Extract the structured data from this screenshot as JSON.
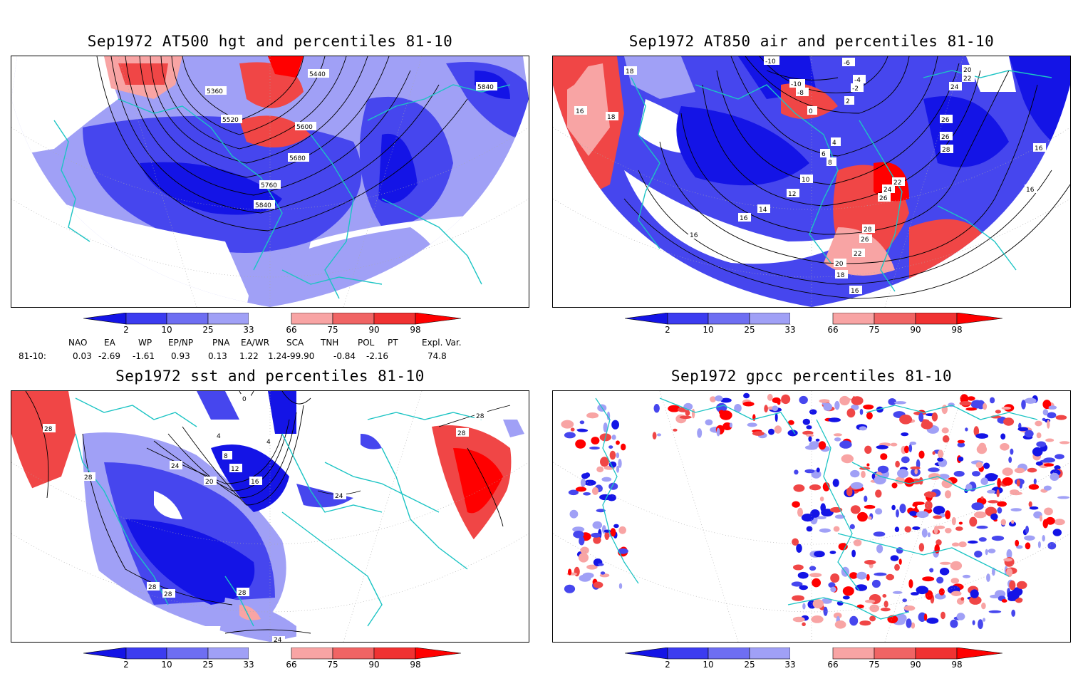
{
  "panels": [
    {
      "title": "Sep1972 AT500 hgt and percentiles 81-10",
      "contour_labels": [
        "5440",
        "5360",
        "5520",
        "5600",
        "5680",
        "5760",
        "5840",
        "5840"
      ]
    },
    {
      "title": "Sep1972 AT850 air and percentiles 81-10",
      "contour_labels": [
        "-10",
        "-6",
        "-4",
        "-2",
        "-8",
        "-10",
        "0",
        "2",
        "18",
        "16",
        "18",
        "4",
        "6",
        "8",
        "10",
        "12",
        "14",
        "16",
        "16",
        "20",
        "22",
        "24",
        "26",
        "26",
        "28",
        "16",
        "16",
        "22",
        "24",
        "26",
        "28",
        "26",
        "22",
        "20",
        "18",
        "16"
      ]
    },
    {
      "title": "Sep1972 sst and percentiles 81-10",
      "contour_labels": [
        "28",
        "28",
        "0",
        "4",
        "8",
        "12",
        "16",
        "20",
        "24",
        "4",
        "24",
        "28",
        "28",
        "28",
        "28",
        "28",
        "24"
      ]
    },
    {
      "title": "Sep1972 gpcc percentiles 81-10",
      "contour_labels": []
    }
  ],
  "colorbar": {
    "labels": [
      "2",
      "10",
      "25",
      "33",
      "66",
      "75",
      "90",
      "98"
    ],
    "colors": [
      "#1414e6",
      "#3c3cf0",
      "#6e6ef2",
      "#a0a0f6",
      "#ffffff",
      "#f8a4a4",
      "#f06464",
      "#f03232",
      "#ff0000"
    ]
  },
  "indices": {
    "headers": [
      "NAO",
      "EA",
      "WP",
      "EP/NP",
      "PNA",
      "EA/WR",
      "SCA",
      "TNH",
      "POL",
      "PT",
      "Expl. Var."
    ],
    "row_label": "81-10:",
    "values": [
      "0.03",
      "-2.69",
      "-1.61",
      "0.93",
      "0.13",
      "1.22",
      "1.24-99.90",
      "-0.84",
      "-2.16",
      "",
      "74.8"
    ]
  },
  "palette": {
    "coast": "#1cc4c4",
    "cold_dark": "#1414e6",
    "cold_mid": "#4646ee",
    "cold_light": "#a0a0f6",
    "warm_light": "#f8a4a4",
    "warm_mid": "#f04646",
    "warm_dark": "#ff0000"
  }
}
